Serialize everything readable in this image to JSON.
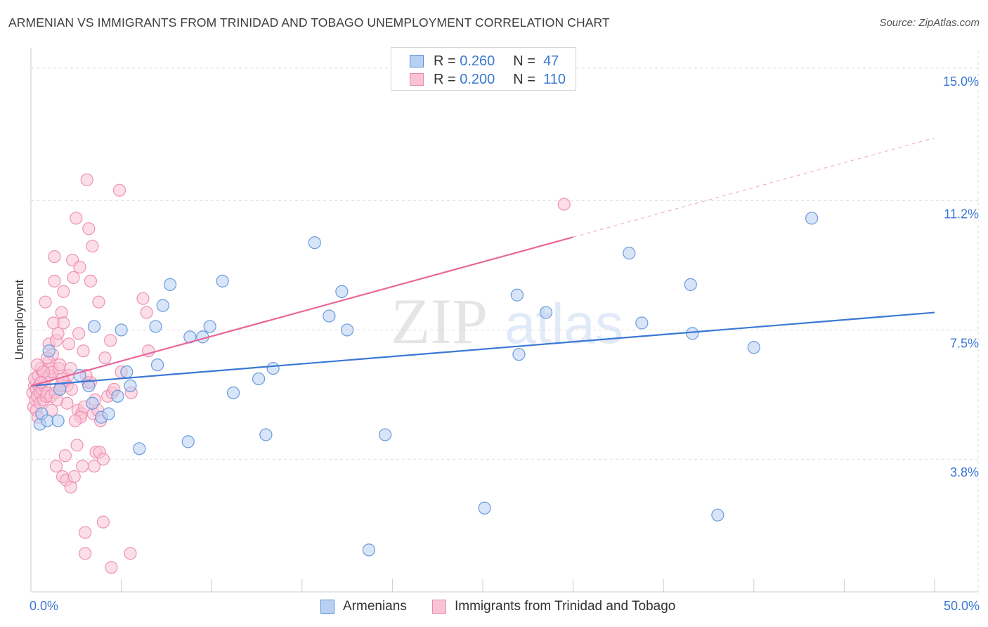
{
  "title": "ARMENIAN VS IMMIGRANTS FROM TRINIDAD AND TOBAGO UNEMPLOYMENT CORRELATION CHART",
  "source": "Source: ZipAtlas.com",
  "watermark": {
    "zip": "ZIP",
    "atlas": "atlas"
  },
  "colors": {
    "blue": "#3a78d4",
    "blue_fill": "#b8d0f2",
    "pink": "#e8679a",
    "pink_fill": "#f9c3d5",
    "grid": "#dddddd",
    "axis_label": "#3a78d4"
  },
  "legend_top": {
    "rows": [
      {
        "r_label": "R =",
        "r_value": "0.260",
        "n_label": "N =",
        "n_value": "47"
      },
      {
        "r_label": "R =",
        "r_value": "0.200",
        "n_label": "N =",
        "n_value": "110"
      }
    ]
  },
  "bottom_legend": [
    "Armenians",
    "Immigrants from Trinidad and Tobago"
  ],
  "chart_data": {
    "type": "scatter",
    "xlabel": "",
    "ylabel": "Unemployment",
    "xlim": [
      0,
      50
    ],
    "ylim": [
      0,
      15.5
    ],
    "x_tick_labels": [
      "0.0%",
      "50.0%"
    ],
    "y_ticks": [
      3.8,
      7.5,
      11.2,
      15.0
    ],
    "y_tick_labels": [
      "3.8%",
      "7.5%",
      "11.2%",
      "15.0%"
    ],
    "grid": true,
    "series": [
      {
        "name": "Armenians",
        "r": 0.26,
        "n": 47,
        "trend": {
          "x0": 0,
          "y0": 5.9,
          "x1": 50,
          "y1": 8.0,
          "solid_until": 50
        },
        "points": [
          [
            0.5,
            4.8
          ],
          [
            0.6,
            5.1
          ],
          [
            0.9,
            4.9
          ],
          [
            1.0,
            6.9
          ],
          [
            1.5,
            4.9
          ],
          [
            1.6,
            5.8
          ],
          [
            2.7,
            6.2
          ],
          [
            3.2,
            5.9
          ],
          [
            3.4,
            5.4
          ],
          [
            3.5,
            7.6
          ],
          [
            3.9,
            5.0
          ],
          [
            4.3,
            5.1
          ],
          [
            4.8,
            5.6
          ],
          [
            5.0,
            7.5
          ],
          [
            5.3,
            6.3
          ],
          [
            5.5,
            5.9
          ],
          [
            6.0,
            4.1
          ],
          [
            6.9,
            7.6
          ],
          [
            7.0,
            6.5
          ],
          [
            7.3,
            8.2
          ],
          [
            7.7,
            8.8
          ],
          [
            8.7,
            4.3
          ],
          [
            8.8,
            7.3
          ],
          [
            9.5,
            7.3
          ],
          [
            9.9,
            7.6
          ],
          [
            10.6,
            8.9
          ],
          [
            11.2,
            5.7
          ],
          [
            12.6,
            6.1
          ],
          [
            13.0,
            4.5
          ],
          [
            13.4,
            6.4
          ],
          [
            15.7,
            10.0
          ],
          [
            16.5,
            7.9
          ],
          [
            17.2,
            8.6
          ],
          [
            17.5,
            7.5
          ],
          [
            18.7,
            1.2
          ],
          [
            19.6,
            4.5
          ],
          [
            25.1,
            2.4
          ],
          [
            26.9,
            8.5
          ],
          [
            27.0,
            6.8
          ],
          [
            28.5,
            8.0
          ],
          [
            33.1,
            9.7
          ],
          [
            33.8,
            7.7
          ],
          [
            36.5,
            8.8
          ],
          [
            36.6,
            7.4
          ],
          [
            38.0,
            2.2
          ],
          [
            40.0,
            7.0
          ],
          [
            43.2,
            10.7
          ]
        ]
      },
      {
        "name": "Immigrants from Trinidad and Tobago",
        "r": 0.2,
        "n": 110,
        "trend": {
          "x0": 0,
          "y0": 5.9,
          "x1": 50,
          "y1": 13.0,
          "solid_until": 30
        },
        "points": [
          [
            0.1,
            5.7
          ],
          [
            0.15,
            5.3
          ],
          [
            0.2,
            5.9
          ],
          [
            0.2,
            6.1
          ],
          [
            0.25,
            5.5
          ],
          [
            0.3,
            5.8
          ],
          [
            0.3,
            5.2
          ],
          [
            0.35,
            5.6
          ],
          [
            0.4,
            6.2
          ],
          [
            0.4,
            5.0
          ],
          [
            0.45,
            5.9
          ],
          [
            0.5,
            5.7
          ],
          [
            0.5,
            5.4
          ],
          [
            0.55,
            6.4
          ],
          [
            0.6,
            5.8
          ],
          [
            0.6,
            6.0
          ],
          [
            0.65,
            6.3
          ],
          [
            0.7,
            5.5
          ],
          [
            0.75,
            5.9
          ],
          [
            0.8,
            8.3
          ],
          [
            0.8,
            6.1
          ],
          [
            0.85,
            5.6
          ],
          [
            0.9,
            5.7
          ],
          [
            0.95,
            6.2
          ],
          [
            1.0,
            6.6
          ],
          [
            1.0,
            7.1
          ],
          [
            1.05,
            6.2
          ],
          [
            1.1,
            5.6
          ],
          [
            1.15,
            6.4
          ],
          [
            1.2,
            6.3
          ],
          [
            1.2,
            6.8
          ],
          [
            1.25,
            7.7
          ],
          [
            1.3,
            8.9
          ],
          [
            1.3,
            9.6
          ],
          [
            1.35,
            5.7
          ],
          [
            1.4,
            7.2
          ],
          [
            1.4,
            3.6
          ],
          [
            1.5,
            7.4
          ],
          [
            1.55,
            6.4
          ],
          [
            1.6,
            5.8
          ],
          [
            1.6,
            6.5
          ],
          [
            1.7,
            8.0
          ],
          [
            1.75,
            3.3
          ],
          [
            1.8,
            8.6
          ],
          [
            1.8,
            7.7
          ],
          [
            1.85,
            6.0
          ],
          [
            1.9,
            3.9
          ],
          [
            1.95,
            3.2
          ],
          [
            2.0,
            5.9
          ],
          [
            2.0,
            5.4
          ],
          [
            2.05,
            6.2
          ],
          [
            2.1,
            7.1
          ],
          [
            2.2,
            6.4
          ],
          [
            2.2,
            3.0
          ],
          [
            2.3,
            9.5
          ],
          [
            2.35,
            9.0
          ],
          [
            2.4,
            3.3
          ],
          [
            2.5,
            10.7
          ],
          [
            2.55,
            4.2
          ],
          [
            2.6,
            5.2
          ],
          [
            2.65,
            7.4
          ],
          [
            2.7,
            9.3
          ],
          [
            2.8,
            5.1
          ],
          [
            2.85,
            3.6
          ],
          [
            2.9,
            6.9
          ],
          [
            3.0,
            1.7
          ],
          [
            3.0,
            1.1
          ],
          [
            3.1,
            11.8
          ],
          [
            3.15,
            6.0
          ],
          [
            3.2,
            10.4
          ],
          [
            3.3,
            6.0
          ],
          [
            3.3,
            8.9
          ],
          [
            3.4,
            9.9
          ],
          [
            3.45,
            5.1
          ],
          [
            3.5,
            3.6
          ],
          [
            3.6,
            4.0
          ],
          [
            3.7,
            5.2
          ],
          [
            3.75,
            8.3
          ],
          [
            3.8,
            4.0
          ],
          [
            4.0,
            3.8
          ],
          [
            4.0,
            2.0
          ],
          [
            4.1,
            6.7
          ],
          [
            4.25,
            5.6
          ],
          [
            4.4,
            7.2
          ],
          [
            4.45,
            0.7
          ],
          [
            4.5,
            5.7
          ],
          [
            4.9,
            11.5
          ],
          [
            5.0,
            6.3
          ],
          [
            5.5,
            1.1
          ],
          [
            5.55,
            5.7
          ],
          [
            6.2,
            8.4
          ],
          [
            6.4,
            8.0
          ],
          [
            6.5,
            6.9
          ],
          [
            0.7,
            6.3
          ],
          [
            0.9,
            6.7
          ],
          [
            1.45,
            5.5
          ],
          [
            0.55,
            6.0
          ],
          [
            1.65,
            5.9
          ],
          [
            2.25,
            5.8
          ],
          [
            2.75,
            5.0
          ],
          [
            3.05,
            6.2
          ],
          [
            3.55,
            5.5
          ],
          [
            0.35,
            6.5
          ],
          [
            1.15,
            5.2
          ],
          [
            1.75,
            6.1
          ],
          [
            2.45,
            4.9
          ],
          [
            2.95,
            5.3
          ],
          [
            3.85,
            4.9
          ],
          [
            4.6,
            5.8
          ],
          [
            29.5,
            11.1
          ]
        ]
      }
    ]
  }
}
